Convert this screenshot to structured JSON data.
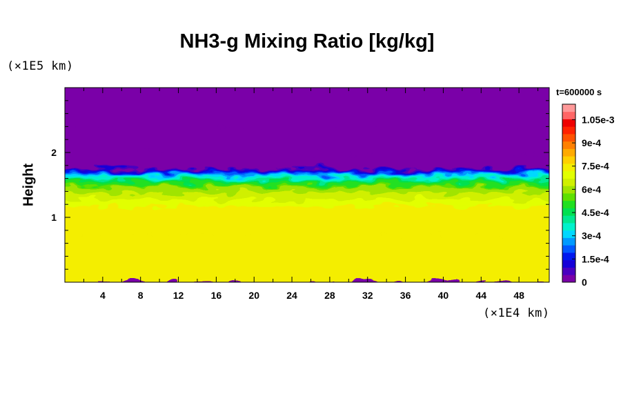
{
  "chart_data": {
    "type": "heatmap",
    "title": "NH3-g Mixing Ratio [kg/kg]",
    "xlabel": "",
    "ylabel": "Height",
    "x_units": "(×1E4 km)",
    "y_units": "(×1E5 km)",
    "time_label": "t=600000 s",
    "xlim": [
      0,
      51.2
    ],
    "ylim": [
      0,
      3.0
    ],
    "x_ticks": [
      4,
      8,
      12,
      16,
      20,
      24,
      28,
      32,
      36,
      40,
      44,
      48
    ],
    "y_ticks": [
      1,
      2
    ],
    "x_minor_step": 2,
    "y_minor_step": 0.2,
    "colorbar": {
      "range": [
        0,
        0.00115
      ],
      "levels": 24,
      "tick_values": [
        0,
        0.00015,
        0.0003,
        0.00045,
        0.0006,
        0.00075,
        0.0009,
        0.00105
      ],
      "tick_labels": [
        "0",
        "1.5e-4",
        "3e-4",
        "4.5e-4",
        "6e-4",
        "7.5e-4",
        "9e-4",
        "1.05e-3"
      ],
      "colors": [
        "#7a00a8",
        "#4a00c0",
        "#1600d8",
        "#0018ee",
        "#0058ff",
        "#009aff",
        "#00d8ff",
        "#00f2cc",
        "#00e890",
        "#00e050",
        "#20e020",
        "#5ee000",
        "#a0e400",
        "#d0f000",
        "#e2ff00",
        "#f4ee00",
        "#ffd000",
        "#ffaa00",
        "#ff8000",
        "#ff5200",
        "#ff2200",
        "#ee0000",
        "#ff6666",
        "#ff9999"
      ]
    },
    "profile": [
      {
        "height": 0.0,
        "value": 0.00075
      },
      {
        "height": 1.1,
        "value": 0.00075
      },
      {
        "height": 1.25,
        "value": 0.00068
      },
      {
        "height": 1.45,
        "value": 0.0006
      },
      {
        "height": 1.6,
        "value": 0.0004
      },
      {
        "height": 1.72,
        "value": 0.00015
      },
      {
        "height": 1.78,
        "value": 0.0
      },
      {
        "height": 3.0,
        "value": 0.0
      }
    ],
    "cloud_top_height": 1.75
  }
}
